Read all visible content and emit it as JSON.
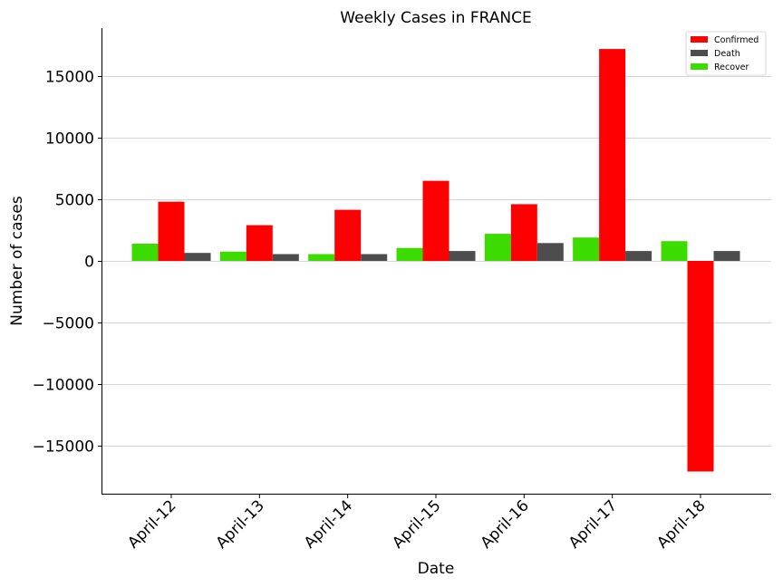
{
  "chart_data": {
    "type": "bar",
    "title": "Weekly Cases in FRANCE",
    "xlabel": "Date",
    "ylabel": "Number of cases",
    "categories": [
      "April-12",
      "April-13",
      "April-14",
      "April-15",
      "April-16",
      "April-17",
      "April-18"
    ],
    "series": [
      {
        "name": "Recover",
        "color": "#3cdc00",
        "values": [
          1400,
          750,
          550,
          1050,
          2200,
          1900,
          1600
        ]
      },
      {
        "name": "Confirmed",
        "color": "#ff0000",
        "values": [
          4800,
          2900,
          4150,
          6500,
          4600,
          17200,
          -17100
        ]
      },
      {
        "name": "Death",
        "color": "#4d4d4d",
        "values": [
          650,
          550,
          550,
          800,
          1450,
          800,
          800
        ]
      }
    ],
    "legend_order": [
      "Confirmed",
      "Death",
      "Recover"
    ],
    "legend_position": "top-right",
    "ylim": [
      -18900,
      18900
    ],
    "yticks": [
      -15000,
      -10000,
      -5000,
      0,
      5000,
      10000,
      15000
    ],
    "ytick_labels": [
      "−15000",
      "−10000",
      "−5000",
      "0",
      "5000",
      "10000",
      "15000"
    ],
    "grid": "y"
  }
}
